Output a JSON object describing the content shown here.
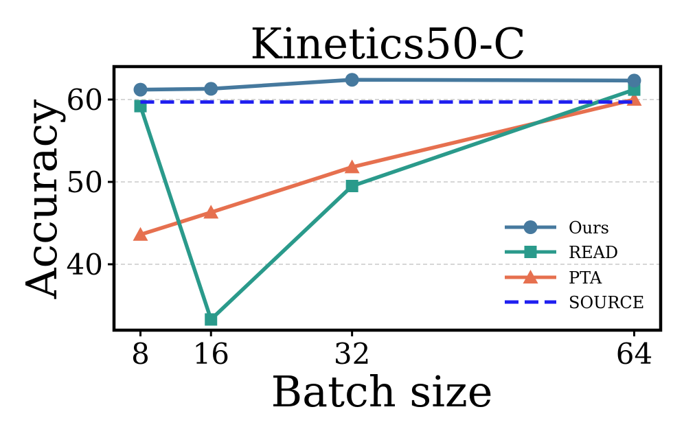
{
  "chart_data": {
    "type": "line",
    "title": "Kinetics50-C",
    "xlabel": "Batch size",
    "ylabel": "Accuracy",
    "x": [
      8,
      16,
      32,
      64
    ],
    "x_tick_labels": [
      "8",
      "16",
      "32",
      "64"
    ],
    "y_ticks": [
      40,
      50,
      60
    ],
    "y_tick_labels": [
      "40",
      "50",
      "60"
    ],
    "xlim": [
      5,
      67
    ],
    "ylim": [
      32,
      64
    ],
    "grid": "horizontal-dashed",
    "legend_position": "lower-right",
    "series": [
      {
        "name": "Ours",
        "values": [
          61.2,
          61.3,
          62.4,
          62.3
        ],
        "color": "#46799e",
        "marker": "circle",
        "linestyle": "solid"
      },
      {
        "name": "READ",
        "values": [
          59.2,
          33.3,
          49.5,
          61.2
        ],
        "color": "#2a9a8b",
        "marker": "square",
        "linestyle": "solid"
      },
      {
        "name": "PTA",
        "values": [
          43.6,
          46.3,
          51.8,
          60.0
        ],
        "color": "#e6704f",
        "marker": "triangle",
        "linestyle": "solid"
      },
      {
        "name": "SOURCE",
        "values": [
          59.7,
          59.7,
          59.7,
          59.7
        ],
        "color": "#1f1ff0",
        "marker": "none",
        "linestyle": "dashed"
      }
    ]
  }
}
